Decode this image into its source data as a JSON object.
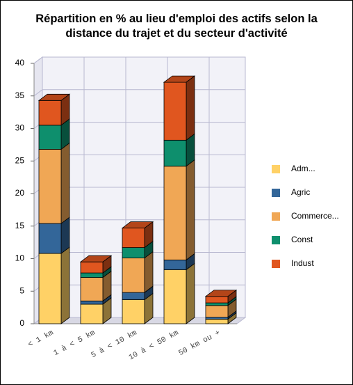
{
  "chart_data": {
    "type": "bar",
    "stacked": true,
    "title": "Répartition en % au lieu d'emploi des actifs selon la distance du trajet et du secteur d'activité",
    "categories": [
      "< 1 km",
      "1 à < 5 km",
      "5 à < 10 km",
      "10 à < 50 km",
      "50 km ou +"
    ],
    "series": [
      {
        "name": "Adm...",
        "color": "#ffd166",
        "values": [
          10.8,
          3.0,
          3.7,
          8.3,
          0.7
        ]
      },
      {
        "name": "Agric",
        "color": "#336699",
        "values": [
          4.6,
          0.5,
          1.1,
          1.5,
          0.3
        ]
      },
      {
        "name": "Commerce...",
        "color": "#f0a755",
        "values": [
          11.4,
          3.6,
          5.3,
          14.4,
          1.8
        ]
      },
      {
        "name": "Const",
        "color": "#0e8f6d",
        "values": [
          3.7,
          0.7,
          1.6,
          4.0,
          0.4
        ]
      },
      {
        "name": "Indust",
        "color": "#e0561f",
        "values": [
          3.8,
          1.7,
          3.0,
          8.9,
          1.0
        ]
      }
    ],
    "ylim": [
      0,
      40
    ],
    "yticks": [
      0,
      5,
      10,
      15,
      20,
      25,
      30,
      35,
      40
    ],
    "grid": true,
    "legend": "right"
  }
}
